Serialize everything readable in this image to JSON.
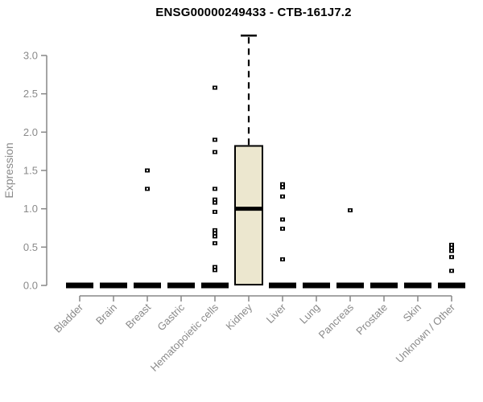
{
  "title": "ENSG00000249433 - CTB-161J7.2",
  "chart_data": {
    "type": "boxplot",
    "title": "ENSG00000249433 - CTB-161J7.2",
    "xlabel": "",
    "ylabel": "Expression",
    "ylim": [
      0,
      3.3
    ],
    "y_ticks": [
      0.0,
      0.5,
      1.0,
      1.5,
      2.0,
      2.5,
      3.0
    ],
    "grid": false,
    "legend": false,
    "categories": [
      "Bladder",
      "Brain",
      "Breast",
      "Gastric",
      "Hematopoietic cells",
      "Kidney",
      "Liver",
      "Lung",
      "Pancreas",
      "Prostate",
      "Skin",
      "Unknown / Other"
    ],
    "boxes": [
      {
        "category": "Bladder",
        "q1": 0,
        "median": 0,
        "q3": 0,
        "whisker_low": 0,
        "whisker_high": 0,
        "outliers": []
      },
      {
        "category": "Brain",
        "q1": 0,
        "median": 0,
        "q3": 0,
        "whisker_low": 0,
        "whisker_high": 0,
        "outliers": []
      },
      {
        "category": "Breast",
        "q1": 0,
        "median": 0,
        "q3": 0,
        "whisker_low": 0,
        "whisker_high": 0,
        "outliers": [
          1.5,
          1.26
        ]
      },
      {
        "category": "Gastric",
        "q1": 0,
        "median": 0,
        "q3": 0,
        "whisker_low": 0,
        "whisker_high": 0,
        "outliers": []
      },
      {
        "category": "Hematopoietic cells",
        "q1": 0,
        "median": 0,
        "q3": 0,
        "whisker_low": 0,
        "whisker_high": 0,
        "outliers": [
          2.58,
          1.9,
          1.74,
          1.26,
          1.12,
          1.08,
          0.96,
          0.72,
          0.68,
          0.64,
          0.55,
          0.24,
          0.2
        ]
      },
      {
        "category": "Kidney",
        "q1": 0.01,
        "median": 1.0,
        "q3": 1.82,
        "whisker_low": 0.01,
        "whisker_high": 3.26,
        "outliers": []
      },
      {
        "category": "Liver",
        "q1": 0,
        "median": 0,
        "q3": 0,
        "whisker_low": 0,
        "whisker_high": 0,
        "outliers": [
          1.32,
          1.28,
          1.16,
          0.86,
          0.74,
          0.34
        ]
      },
      {
        "category": "Lung",
        "q1": 0,
        "median": 0,
        "q3": 0,
        "whisker_low": 0,
        "whisker_high": 0,
        "outliers": []
      },
      {
        "category": "Pancreas",
        "q1": 0,
        "median": 0,
        "q3": 0,
        "whisker_low": 0,
        "whisker_high": 0,
        "outliers": [
          0.98
        ]
      },
      {
        "category": "Prostate",
        "q1": 0,
        "median": 0,
        "q3": 0,
        "whisker_low": 0,
        "whisker_high": 0,
        "outliers": []
      },
      {
        "category": "Skin",
        "q1": 0,
        "median": 0,
        "q3": 0,
        "whisker_low": 0,
        "whisker_high": 0,
        "outliers": []
      },
      {
        "category": "Unknown / Other",
        "q1": 0,
        "median": 0,
        "q3": 0,
        "whisker_low": 0,
        "whisker_high": 0,
        "outliers": [
          0.53,
          0.49,
          0.45,
          0.37,
          0.19
        ]
      }
    ],
    "colors": {
      "box_fill": "#ece7cf",
      "box_border": "#000000",
      "median": "#000000",
      "outlier": "#000000",
      "axis": "#878787",
      "tick_label": "#8a8a8a",
      "title": "#000000",
      "background": "#ffffff"
    }
  }
}
